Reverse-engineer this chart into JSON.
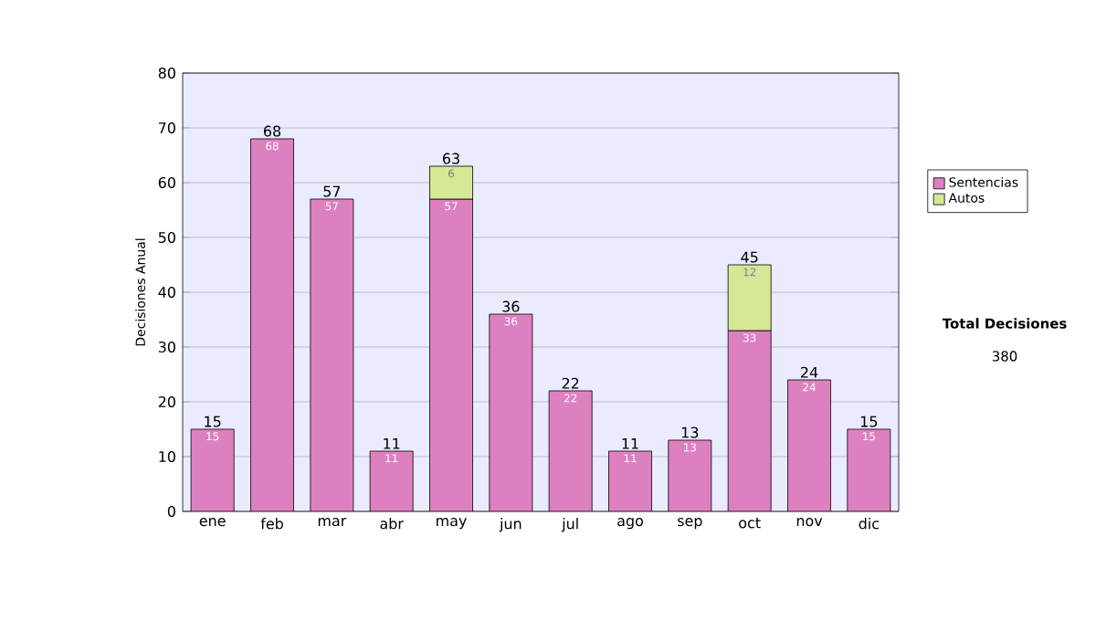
{
  "chart_data": {
    "type": "bar",
    "stacked": true,
    "ylabel": "Decisiones Anual",
    "categories": [
      "ene",
      "feb",
      "mar",
      "abr",
      "may",
      "jun",
      "jul",
      "ago",
      "sep",
      "oct",
      "nov",
      "dic"
    ],
    "series": [
      {
        "name": "Sentencias",
        "color": "#dd80c0",
        "values": [
          15,
          68,
          57,
          11,
          57,
          36,
          22,
          11,
          13,
          33,
          24,
          15
        ]
      },
      {
        "name": "Autos",
        "color": "#d4e896",
        "values": [
          null,
          null,
          null,
          null,
          6,
          null,
          null,
          null,
          null,
          12,
          null,
          null
        ]
      }
    ],
    "totals": [
      "15",
      "68",
      "57",
      "11",
      "63",
      "36",
      "22",
      "11",
      "13",
      "45",
      "24",
      "15"
    ],
    "data_labels": true,
    "ylim": [
      0,
      80
    ],
    "yticks": [
      0,
      10,
      20,
      30,
      40,
      50,
      60,
      70,
      80
    ],
    "grid": "y",
    "legend": "right",
    "annotations": [
      "Total Decisiones",
      "380"
    ]
  }
}
